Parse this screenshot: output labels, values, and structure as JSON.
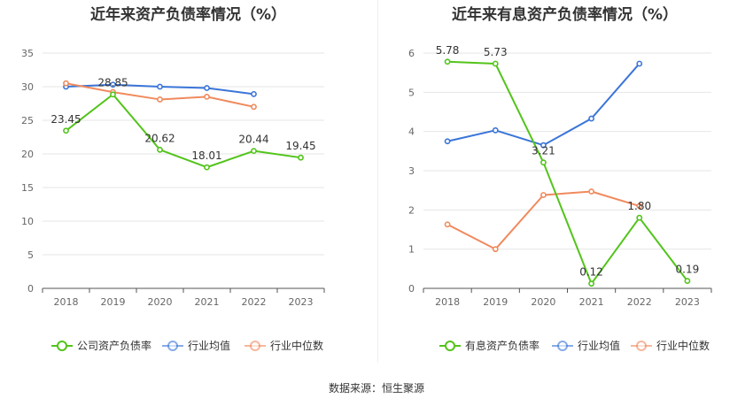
{
  "chart_data": [
    {
      "type": "line",
      "title": "近年来资产负债率情况（%）",
      "categories": [
        "2018",
        "2019",
        "2020",
        "2021",
        "2022",
        "2023"
      ],
      "ylim": [
        0,
        35
      ],
      "yticks": [
        0,
        5,
        10,
        15,
        20,
        25,
        30,
        35
      ],
      "grid": true,
      "legend_position": "bottom",
      "series": [
        {
          "name": "公司资产负债率",
          "color": "#52c41a",
          "values": [
            23.45,
            28.85,
            20.62,
            18.01,
            20.44,
            19.45
          ],
          "labels": [
            "23.45",
            "28.85",
            "20.62",
            "18.01",
            "20.44",
            "19.45"
          ]
        },
        {
          "name": "行业均值",
          "color": "#3a75d8",
          "values": [
            30.0,
            30.3,
            30.0,
            29.8,
            28.9,
            null
          ]
        },
        {
          "name": "行业中位数",
          "color": "#f08a5d",
          "values": [
            30.5,
            29.2,
            28.1,
            28.5,
            27.0,
            null
          ]
        }
      ]
    },
    {
      "type": "line",
      "title": "近年来有息资产负债率情况（%）",
      "categories": [
        "2018",
        "2019",
        "2020",
        "2021",
        "2022",
        "2023"
      ],
      "ylim": [
        0,
        6
      ],
      "yticks": [
        0,
        1,
        2,
        3,
        4,
        5,
        6
      ],
      "grid": true,
      "legend_position": "bottom",
      "series": [
        {
          "name": "有息资产负债率",
          "color": "#52c41a",
          "values": [
            5.78,
            5.73,
            3.21,
            0.12,
            1.8,
            0.19
          ],
          "labels": [
            "5.78",
            "5.73",
            "3.21",
            "0.12",
            "1.80",
            "0.19"
          ]
        },
        {
          "name": "行业均值",
          "color": "#3a75d8",
          "values": [
            3.75,
            4.03,
            3.65,
            4.33,
            5.73,
            null
          ]
        },
        {
          "name": "行业中位数",
          "color": "#f08a5d",
          "values": [
            1.63,
            1.0,
            2.38,
            2.47,
            2.1,
            null
          ]
        }
      ]
    }
  ],
  "footer": {
    "source": "数据来源：恒生聚源"
  }
}
